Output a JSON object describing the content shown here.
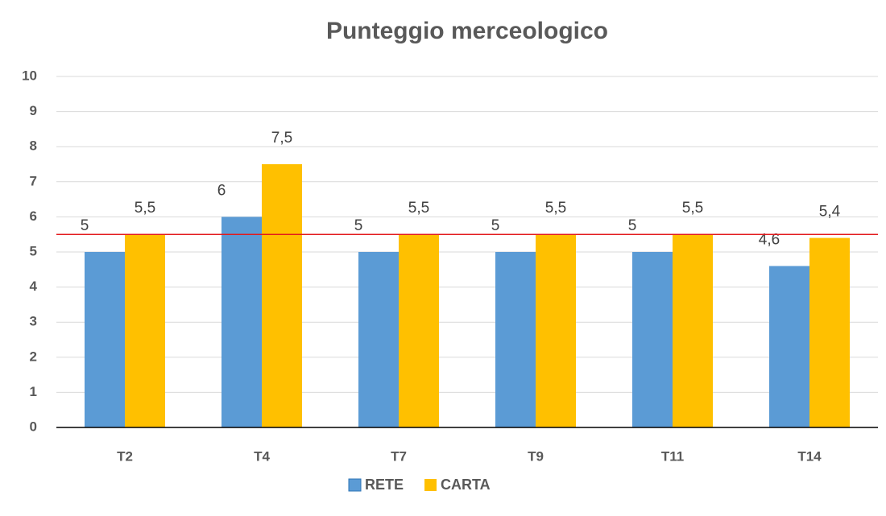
{
  "chart_data": {
    "type": "bar",
    "title": "Punteggio merceologico",
    "categories": [
      "T2",
      "T4",
      "T7",
      "T9",
      "T11",
      "T14"
    ],
    "series": [
      {
        "name": "RETE",
        "color": "#5b9bd5",
        "values": [
          5,
          6,
          5,
          5,
          5,
          4.6
        ],
        "value_labels": [
          "5",
          "6",
          "5",
          "5",
          "5",
          "4,6"
        ]
      },
      {
        "name": "CARTA",
        "color": "#ffc000",
        "values": [
          5.5,
          7.5,
          5.5,
          5.5,
          5.5,
          5.4
        ],
        "value_labels": [
          "5,5",
          "7,5",
          "5,5",
          "5,5",
          "5,5",
          "5,4"
        ]
      }
    ],
    "reference_line": {
      "value": 5.5,
      "color": "#e31a1c"
    },
    "ylim": [
      0,
      10
    ],
    "yticks": [
      0,
      1,
      2,
      3,
      4,
      5,
      6,
      7,
      8,
      9,
      10
    ],
    "grid": true,
    "legend": "bottom"
  }
}
